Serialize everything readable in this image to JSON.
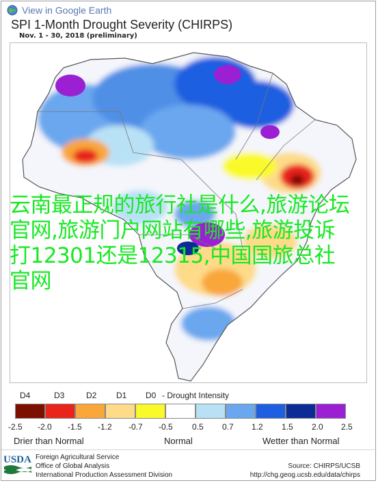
{
  "header": {
    "ge_link": "View in Google Earth",
    "title": "SPI 1-Month Drought Severity (CHIRPS)",
    "subtitle": "Nov. 1 - 30, 2018 (preliminary)"
  },
  "overlay_text": "云南最正规的旅行社是什么,旅游论坛官网,旅游门户网站有哪些,旅游投诉打12301还是12315,中国国旅总社官网",
  "legend": {
    "drought_classes": [
      "D4",
      "D3",
      "D2",
      "D1",
      "D0"
    ],
    "drought_title": "- Drought Intensity",
    "ticks": [
      "-2.5",
      "-2.0",
      "-1.5",
      "-1.2",
      "-0.7",
      "-0.5",
      "0.5",
      "0.7",
      "1.2",
      "1.5",
      "2.0",
      "2.5"
    ],
    "colors": [
      "#7b0f00",
      "#e8241b",
      "#f9a63a",
      "#fddb88",
      "#fafa2a",
      "#ffffff",
      "#b9e1f6",
      "#6aa7ee",
      "#1d5fe0",
      "#0b2c94",
      "#9b20d4"
    ],
    "labels": {
      "dry": "Drier than Normal",
      "normal": "Normal",
      "wet": "Wetter than Normal"
    }
  },
  "footer": {
    "logo_text": "USDA",
    "agency_lines": [
      "Foreign Agricultural Service",
      "Office of Global Analysis",
      "International Production Assessment Division"
    ],
    "source": "Source: CHIRPS/UCSB",
    "source_url": "http://chg.geog.ucsb.edu/data/chirps"
  }
}
